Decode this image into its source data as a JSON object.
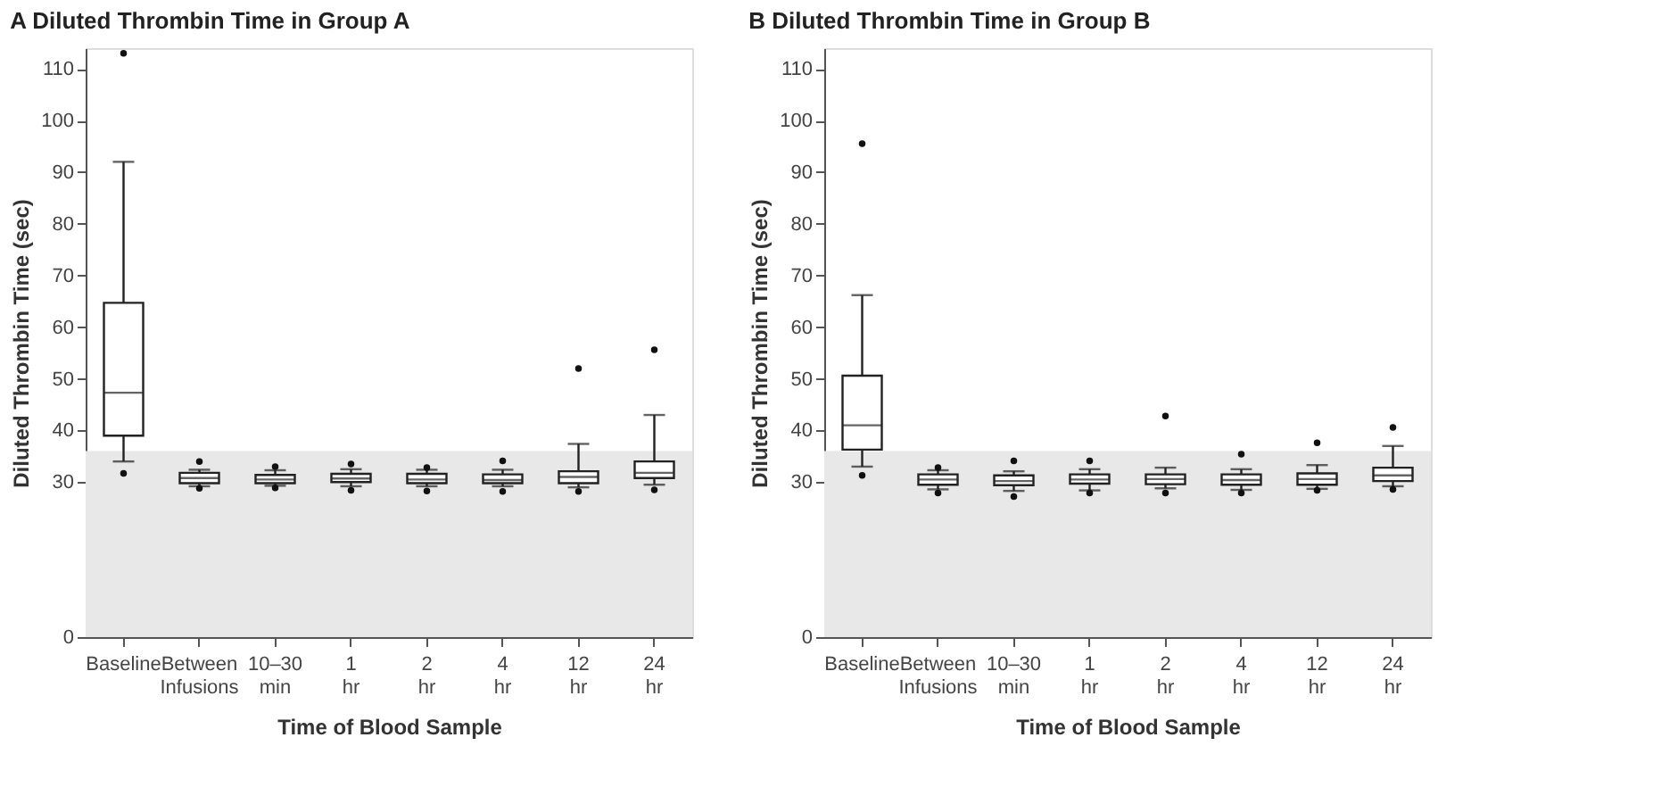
{
  "chart_data": [
    {
      "type": "box",
      "title": "A Diluted Thrombin Time in Group A",
      "xlabel": "Time of Blood Sample",
      "ylabel": "Diluted Thrombin Time (sec)",
      "categories": [
        "Baseline",
        "Between Infusions",
        "10–30 min",
        "1 hr",
        "2 hr",
        "4 hr",
        "12 hr",
        "24 hr"
      ],
      "boxes": [
        {
          "low": 34,
          "q1": 39,
          "median": 47.3,
          "q3": 64.7,
          "high": 92,
          "outliers": [
            31.7,
            113
          ]
        },
        {
          "low": 29.2,
          "q1": 29.8,
          "median": 30.8,
          "q3": 31.8,
          "high": 32.4,
          "outliers": [
            28.8,
            34
          ]
        },
        {
          "low": 29.3,
          "q1": 29.8,
          "median": 30.5,
          "q3": 31.4,
          "high": 32.3,
          "outliers": [
            28.9,
            33
          ]
        },
        {
          "low": 29.2,
          "q1": 30,
          "median": 30.7,
          "q3": 31.6,
          "high": 32.5,
          "outliers": [
            28.4,
            33.5
          ]
        },
        {
          "low": 29.2,
          "q1": 29.8,
          "median": 30.5,
          "q3": 31.6,
          "high": 32.4,
          "outliers": [
            28.3,
            32.8
          ]
        },
        {
          "low": 29.2,
          "q1": 29.8,
          "median": 30.4,
          "q3": 31.5,
          "high": 32.4,
          "outliers": [
            28.2,
            34.1
          ]
        },
        {
          "low": 29,
          "q1": 29.8,
          "median": 31,
          "q3": 32.1,
          "high": 37.4,
          "outliers": [
            28.2,
            52
          ]
        },
        {
          "low": 29.5,
          "q1": 30.8,
          "median": 31.8,
          "q3": 34,
          "high": 43,
          "outliers": [
            28.5,
            55.6
          ]
        }
      ],
      "ylim": [
        0,
        114
      ],
      "yticks": [
        0,
        30,
        40,
        50,
        60,
        70,
        80,
        90,
        100,
        110
      ],
      "bands": [
        {
          "axis": "y",
          "from": 0,
          "to": 36,
          "color": "#e8e8e8"
        }
      ],
      "grid": false
    },
    {
      "type": "box",
      "title": "B Diluted Thrombin Time in Group B",
      "xlabel": "Time of Blood Sample",
      "ylabel": "Diluted Thrombin Time (sec)",
      "categories": [
        "Baseline",
        "Between Infusions",
        "10–30 min",
        "1 hr",
        "2 hr",
        "4 hr",
        "12 hr",
        "24 hr"
      ],
      "boxes": [
        {
          "low": 33,
          "q1": 36.3,
          "median": 41,
          "q3": 50.6,
          "high": 66.2,
          "outliers": [
            31.3,
            95.5
          ]
        },
        {
          "low": 28.6,
          "q1": 29.5,
          "median": 30.5,
          "q3": 31.5,
          "high": 32.3,
          "outliers": [
            27.9,
            32.8
          ]
        },
        {
          "low": 28.3,
          "q1": 29.4,
          "median": 30.2,
          "q3": 31.3,
          "high": 32.1,
          "outliers": [
            27.2,
            34.1
          ]
        },
        {
          "low": 28.4,
          "q1": 29.7,
          "median": 30.5,
          "q3": 31.5,
          "high": 32.5,
          "outliers": [
            27.9,
            34.1
          ]
        },
        {
          "low": 28.8,
          "q1": 29.6,
          "median": 30.6,
          "q3": 31.5,
          "high": 32.8,
          "outliers": [
            27.9,
            42.8
          ]
        },
        {
          "low": 28.5,
          "q1": 29.5,
          "median": 30.4,
          "q3": 31.5,
          "high": 32.5,
          "outliers": [
            27.9,
            35.4
          ]
        },
        {
          "low": 28.7,
          "q1": 29.5,
          "median": 30.6,
          "q3": 31.7,
          "high": 33.3,
          "outliers": [
            28.4,
            37.6
          ]
        },
        {
          "low": 29.2,
          "q1": 30.2,
          "median": 31.3,
          "q3": 32.8,
          "high": 37,
          "outliers": [
            28.6,
            40.6
          ]
        }
      ],
      "ylim": [
        0,
        114
      ],
      "yticks": [
        0,
        30,
        40,
        50,
        60,
        70,
        80,
        90,
        100,
        110
      ],
      "bands": [
        {
          "axis": "y",
          "from": 0,
          "to": 36,
          "color": "#e8e8e8"
        }
      ],
      "grid": false
    }
  ]
}
